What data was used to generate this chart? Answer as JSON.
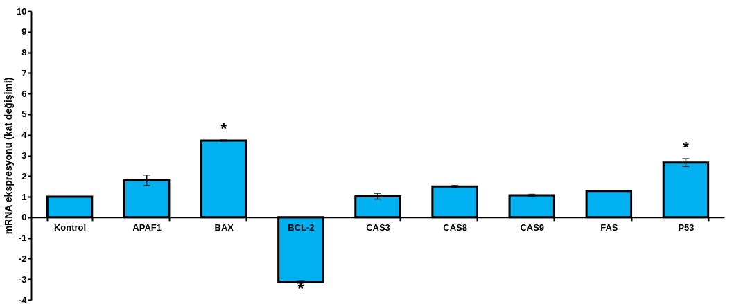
{
  "chart_data": {
    "type": "bar",
    "ylabel": "mRNA ekspresyonu (kat değişimi)",
    "categories": [
      "Kontrol",
      "APAF1",
      "BAX",
      "BCL-2",
      "CAS3",
      "CAS8",
      "CAS9",
      "FAS",
      "P53"
    ],
    "values": [
      1.0,
      1.8,
      3.72,
      -3.14,
      1.02,
      1.5,
      1.07,
      1.28,
      2.66
    ],
    "errors": [
      null,
      0.25,
      0.03,
      0.05,
      0.14,
      0.05,
      0.05,
      null,
      0.19
    ],
    "color": "#00b0f0",
    "ylim": [
      -4,
      10
    ],
    "yticks": [
      -4,
      -3,
      -2,
      -1,
      0,
      1,
      2,
      3,
      4,
      5,
      6,
      7,
      8,
      9,
      10
    ],
    "grid": false,
    "value_labels": [
      null,
      null,
      "*",
      "*",
      null,
      null,
      null,
      null,
      "*"
    ]
  }
}
